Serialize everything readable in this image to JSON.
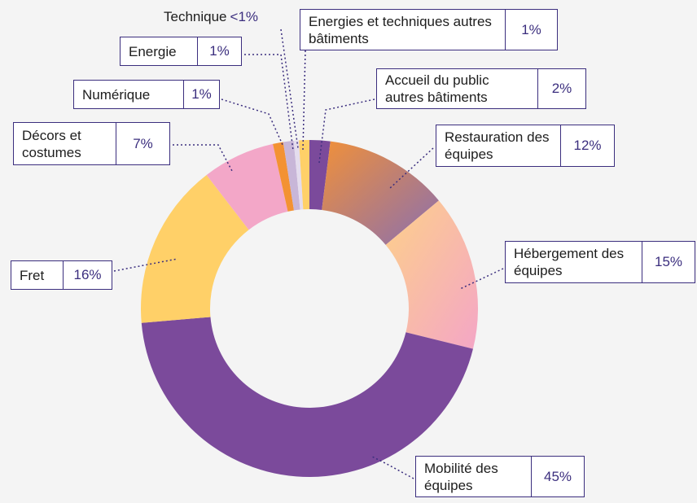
{
  "chart_data": {
    "type": "pie",
    "donut": true,
    "categories": [
      "Accueil du public autres bâtiments",
      "Restauration des équipes",
      "Hébergement des équipes",
      "Mobilité des équipes",
      "Fret",
      "Décors et costumes",
      "Numérique",
      "Energie",
      "Technique",
      "Energies et techniques autres bâtiments"
    ],
    "values": [
      2,
      12,
      15,
      45,
      16,
      7,
      1,
      1,
      0.5,
      1
    ],
    "value_labels": [
      "2%",
      "12%",
      "15%",
      "45%",
      "16%",
      "7%",
      "1%",
      "1%",
      "<1%",
      "1%"
    ],
    "colors": [
      "#7b4a9b",
      [
        "#f0903a",
        "#8a6fb0"
      ],
      [
        "#fdd08a",
        "#f4a6c6"
      ],
      "#7b4a9b",
      "#ffd068",
      "#f3a7c8",
      "#f39233",
      "#c8b6d8",
      "#e4dced",
      "#ffd068"
    ]
  }
}
